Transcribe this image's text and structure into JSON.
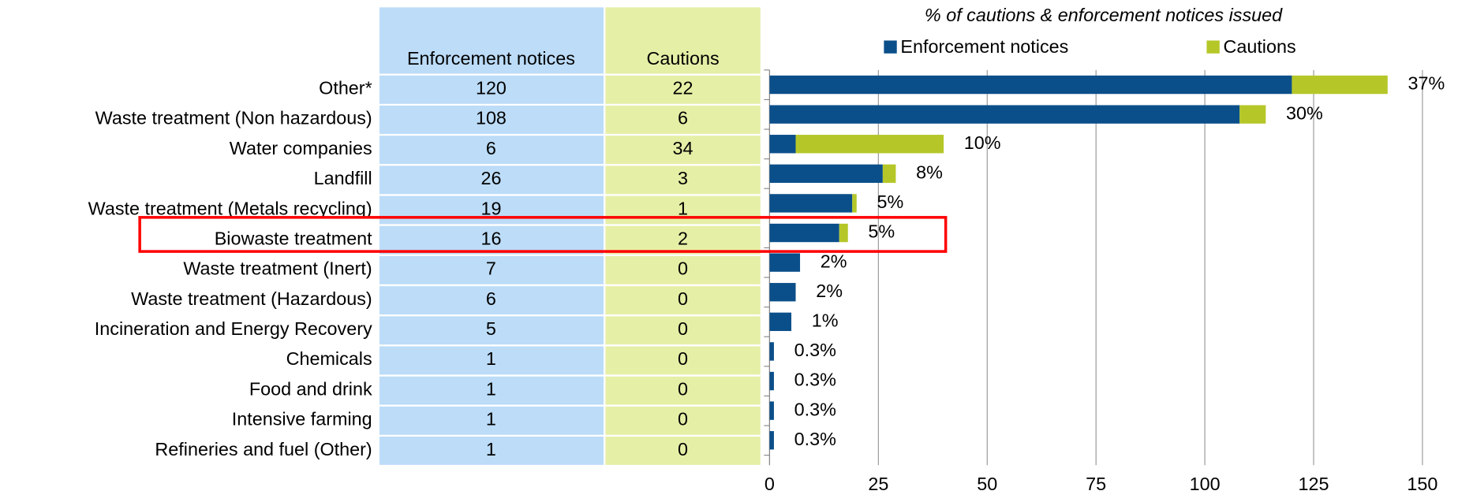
{
  "chart_data": {
    "type": "stacked_barh",
    "title": "% of cautions & enforcement notices issued",
    "categories": [
      "Other*",
      "Waste treatment (Non hazardous)",
      "Water companies",
      "Landfill",
      "Waste treatment (Metals recycling)",
      "Biowaste treatment",
      "Waste treatment (Inert)",
      "Waste treatment (Hazardous)",
      "Incineration and Energy Recovery",
      "Chemicals",
      "Food and drink",
      "Intensive farming",
      "Refineries and fuel (Other)"
    ],
    "series": [
      {
        "name": "Enforcement notices",
        "color": "#0b4f8a",
        "values": [
          120,
          108,
          6,
          26,
          19,
          16,
          7,
          6,
          5,
          1,
          1,
          1,
          1
        ]
      },
      {
        "name": "Cautions",
        "color": "#b5c728",
        "values": [
          22,
          6,
          34,
          3,
          1,
          2,
          0,
          0,
          0,
          0,
          0,
          0,
          0
        ]
      }
    ],
    "shares": {
      "values": [
        37,
        30,
        10,
        8,
        5,
        5,
        2,
        2,
        1,
        0.3,
        0.3,
        0.3,
        0.3
      ],
      "value_labels": [
        "37%",
        "30%",
        "10%",
        "8%",
        "5%",
        "5%",
        "2%",
        "2%",
        "1%",
        "0.3%",
        "0.3%",
        "0.3%",
        "0.3%"
      ]
    },
    "xlim": [
      0,
      150
    ],
    "xticks": [
      0,
      25,
      50,
      75,
      100,
      125,
      150
    ],
    "grid": true,
    "legend": "top"
  }
}
